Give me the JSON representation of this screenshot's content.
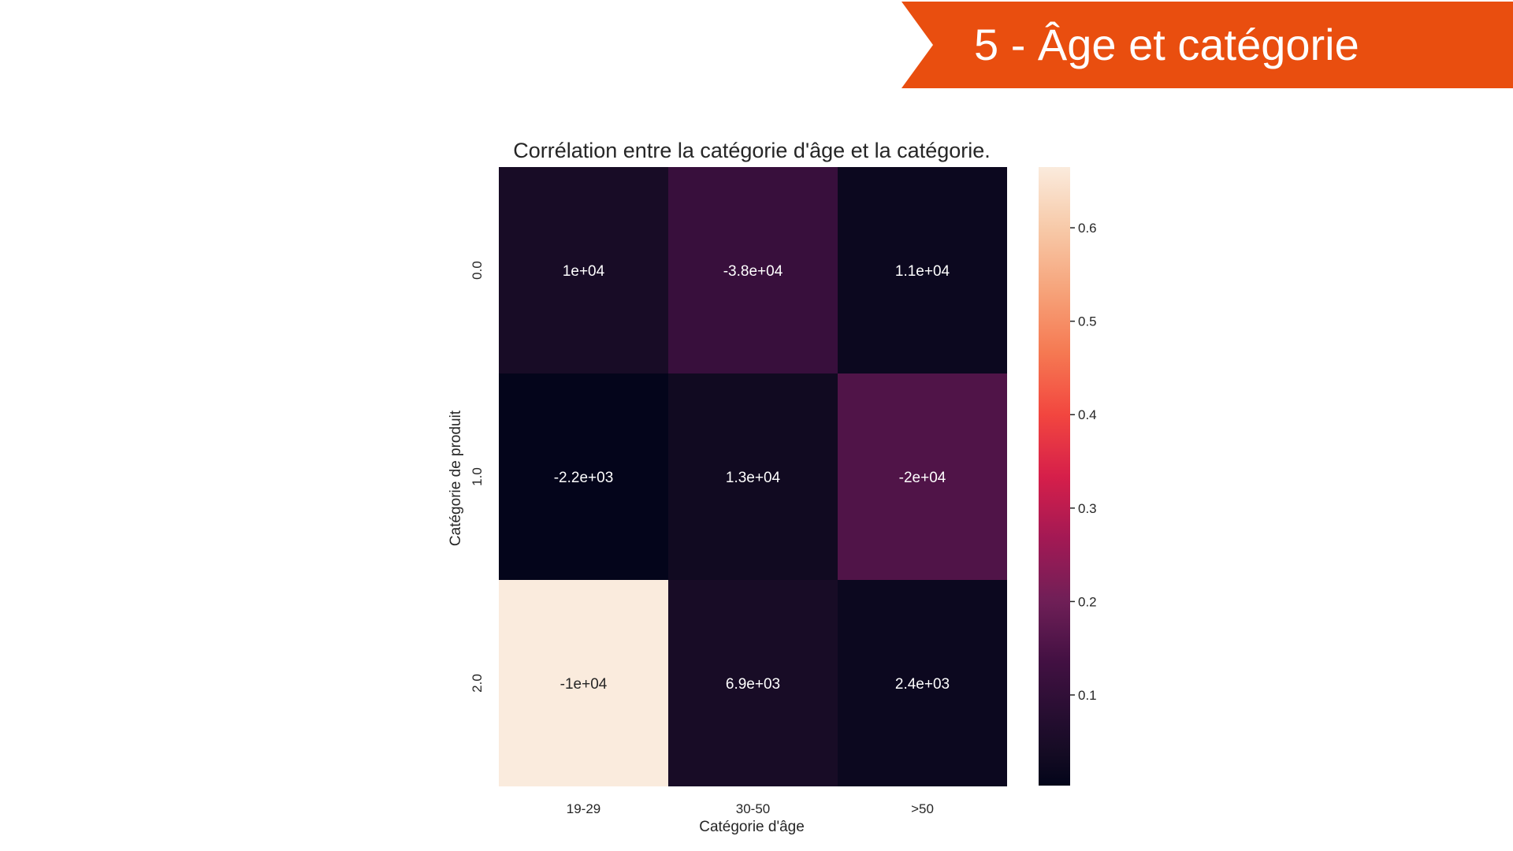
{
  "slide": {
    "banner_title": "5 - Âge et catégorie",
    "banner_color": "#e94e0f"
  },
  "chart_data": {
    "type": "heatmap",
    "title": "Corrélation entre la catégorie d'âge et la catégorie.",
    "xlabel": "Catégorie d'âge",
    "ylabel": "Catégorie de produit",
    "x_categories": [
      "19-29",
      "30-50",
      ">50"
    ],
    "y_categories": [
      "0.0",
      "1.0",
      "2.0"
    ],
    "cell_labels": [
      [
        "1e+04",
        "-3.8e+04",
        "1.1e+04"
      ],
      [
        "-2.2e+03",
        "1.3e+04",
        "-2e+04"
      ],
      [
        "-1e+04",
        "6.9e+03",
        "2.4e+03"
      ]
    ],
    "cell_color_values": [
      [
        0.045,
        0.115,
        0.02
      ],
      [
        0.005,
        0.03,
        0.155
      ],
      [
        0.665,
        0.045,
        0.02
      ]
    ],
    "colorbar": {
      "min": 0.003,
      "max": 0.665,
      "ticks": [
        0.1,
        0.2,
        0.3,
        0.4,
        0.5,
        0.6
      ],
      "tick_labels": [
        "0.1",
        "0.2",
        "0.3",
        "0.4",
        "0.5",
        "0.6"
      ],
      "colormap": "rocket"
    },
    "grid": false
  }
}
